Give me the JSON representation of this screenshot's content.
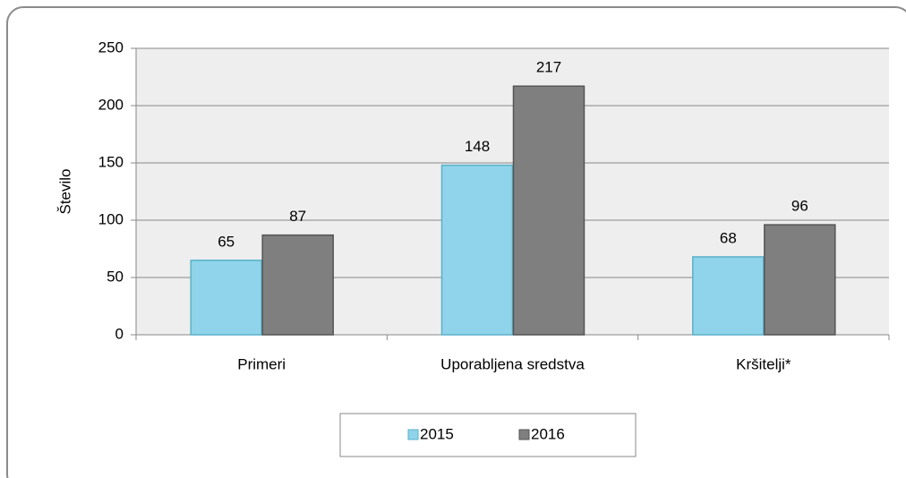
{
  "chart_data": {
    "type": "bar",
    "ylabel": "Število",
    "categories": [
      "Primeri",
      "Uporabljena sredstva",
      "Kršitelji*"
    ],
    "series": [
      {
        "name": "2015",
        "color": "#8fd4ea",
        "values": [
          65,
          148,
          68
        ]
      },
      {
        "name": "2016",
        "color": "#7f7f7f",
        "values": [
          87,
          217,
          96
        ]
      }
    ],
    "ylim": [
      0,
      250
    ],
    "yticks": [
      0,
      50,
      100,
      150,
      200,
      250
    ],
    "grid": true,
    "legend": "bottom"
  }
}
